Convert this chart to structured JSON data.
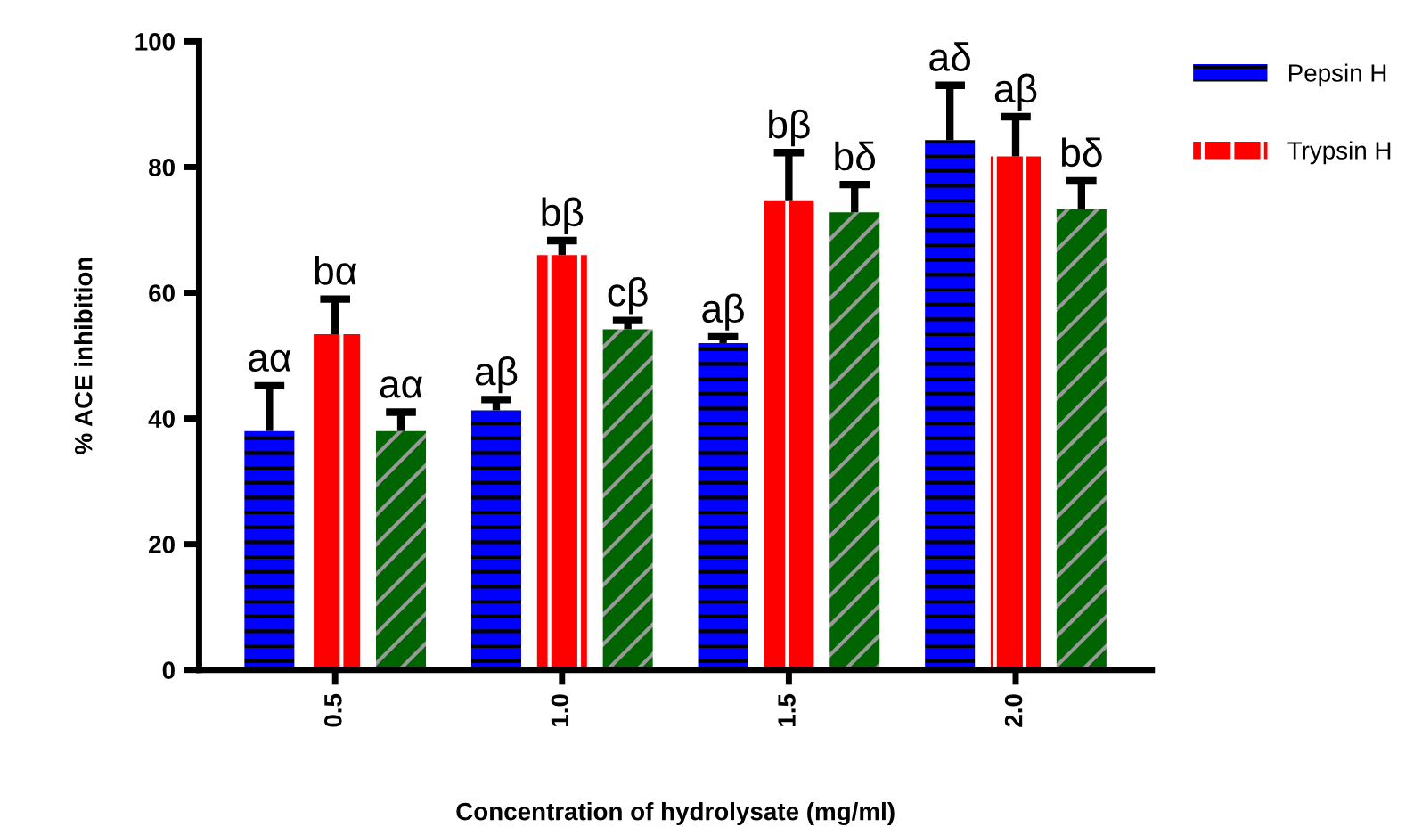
{
  "chart_data": {
    "type": "bar",
    "xlabel": "Concentration of hydrolysate (mg/ml)",
    "ylabel": "% ACE inhibition",
    "categories": [
      "0.5",
      "1.0",
      "1.5",
      "2.0"
    ],
    "series": [
      {
        "name": "Pepsin H",
        "color": "#0000ff",
        "values": [
          38,
          41.3,
          52,
          84.3
        ],
        "errors": [
          [
            38,
            45.2
          ],
          [
            41.3,
            43
          ],
          [
            52,
            53
          ],
          [
            84.3,
            93
          ]
        ],
        "value_labels": [
          "aα",
          "aβ",
          "aβ",
          "aδ"
        ]
      },
      {
        "name": "Trypsin H",
        "color": "#ff0000",
        "values": [
          53.4,
          66,
          74.7,
          81.7
        ],
        "errors": [
          [
            53.4,
            59
          ],
          [
            66,
            68.3
          ],
          [
            74.7,
            82.3
          ],
          [
            81.7,
            88
          ]
        ],
        "value_labels": [
          "bα",
          "bβ",
          "bβ",
          "aβ"
        ]
      },
      {
        "color": "#006400",
        "values": [
          38,
          54.2,
          72.8,
          73.3
        ],
        "errors": [
          [
            38,
            41
          ],
          [
            54.2,
            55.6
          ],
          [
            72.8,
            77.2
          ],
          [
            73.3,
            77.8
          ]
        ],
        "value_labels": [
          "aα",
          "cβ",
          "bδ",
          "bδ"
        ]
      }
    ],
    "ylim": [
      0,
      100
    ],
    "yticks": [
      0,
      20,
      40,
      60,
      80,
      100
    ],
    "grid": false,
    "legend": "top right"
  }
}
